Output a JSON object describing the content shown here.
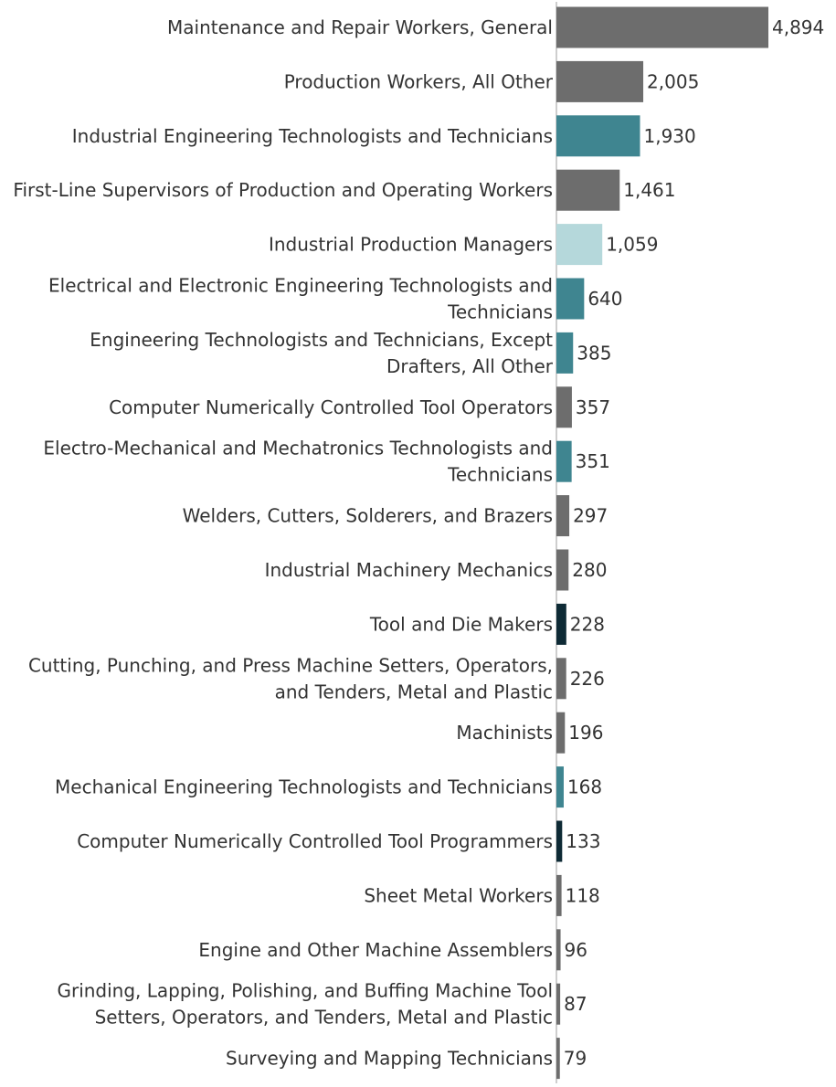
{
  "colors": {
    "gray": "#6d6d6d",
    "teal": "#3f8590",
    "light_teal": "#b5d8db",
    "dark_navy": "#0e2a35",
    "text": "#333333",
    "axis": "#bdbdbd"
  },
  "chart_data": {
    "type": "bar",
    "orientation": "horizontal",
    "title": "",
    "xlabel": "",
    "ylabel": "",
    "xlim": [
      0,
      4894
    ],
    "grid": false,
    "legend": "none",
    "bars": [
      {
        "category": [
          "Maintenance and Repair Workers, General"
        ],
        "value": 4894,
        "value_label": "4,894",
        "color": "gray"
      },
      {
        "category": [
          "Production Workers, All Other"
        ],
        "value": 2005,
        "value_label": "2,005",
        "color": "gray"
      },
      {
        "category": [
          "Industrial Engineering Technologists and Technicians"
        ],
        "value": 1930,
        "value_label": "1,930",
        "color": "teal"
      },
      {
        "category": [
          "First-Line Supervisors of Production and Operating Workers"
        ],
        "value": 1461,
        "value_label": "1,461",
        "color": "gray"
      },
      {
        "category": [
          "Industrial Production Managers"
        ],
        "value": 1059,
        "value_label": "1,059",
        "color": "light_teal"
      },
      {
        "category": [
          "Electrical and Electronic Engineering Technologists and",
          "Technicians"
        ],
        "value": 640,
        "value_label": "640",
        "color": "teal"
      },
      {
        "category": [
          "Engineering Technologists and Technicians, Except",
          "Drafters, All Other"
        ],
        "value": 385,
        "value_label": "385",
        "color": "teal"
      },
      {
        "category": [
          "Computer Numerically Controlled Tool Operators"
        ],
        "value": 357,
        "value_label": "357",
        "color": "gray"
      },
      {
        "category": [
          "Electro-Mechanical and Mechatronics Technologists and",
          "Technicians"
        ],
        "value": 351,
        "value_label": "351",
        "color": "teal"
      },
      {
        "category": [
          "Welders, Cutters, Solderers, and Brazers"
        ],
        "value": 297,
        "value_label": "297",
        "color": "gray"
      },
      {
        "category": [
          "Industrial Machinery Mechanics"
        ],
        "value": 280,
        "value_label": "280",
        "color": "gray"
      },
      {
        "category": [
          "Tool and Die Makers"
        ],
        "value": 228,
        "value_label": "228",
        "color": "dark_navy"
      },
      {
        "category": [
          "Cutting, Punching, and Press Machine Setters, Operators,",
          "and Tenders, Metal and Plastic"
        ],
        "value": 226,
        "value_label": "226",
        "color": "gray"
      },
      {
        "category": [
          "Machinists"
        ],
        "value": 196,
        "value_label": "196",
        "color": "gray"
      },
      {
        "category": [
          "Mechanical Engineering Technologists and Technicians"
        ],
        "value": 168,
        "value_label": "168",
        "color": "teal"
      },
      {
        "category": [
          "Computer Numerically Controlled Tool Programmers"
        ],
        "value": 133,
        "value_label": "133",
        "color": "dark_navy"
      },
      {
        "category": [
          "Sheet Metal Workers"
        ],
        "value": 118,
        "value_label": "118",
        "color": "gray"
      },
      {
        "category": [
          "Engine and Other Machine Assemblers"
        ],
        "value": 96,
        "value_label": "96",
        "color": "gray"
      },
      {
        "category": [
          "Grinding, Lapping, Polishing, and Buffing Machine Tool",
          "Setters, Operators, and Tenders, Metal and Plastic"
        ],
        "value": 87,
        "value_label": "87",
        "color": "gray"
      },
      {
        "category": [
          "Surveying and Mapping Technicians"
        ],
        "value": 79,
        "value_label": "79",
        "color": "gray"
      }
    ]
  }
}
